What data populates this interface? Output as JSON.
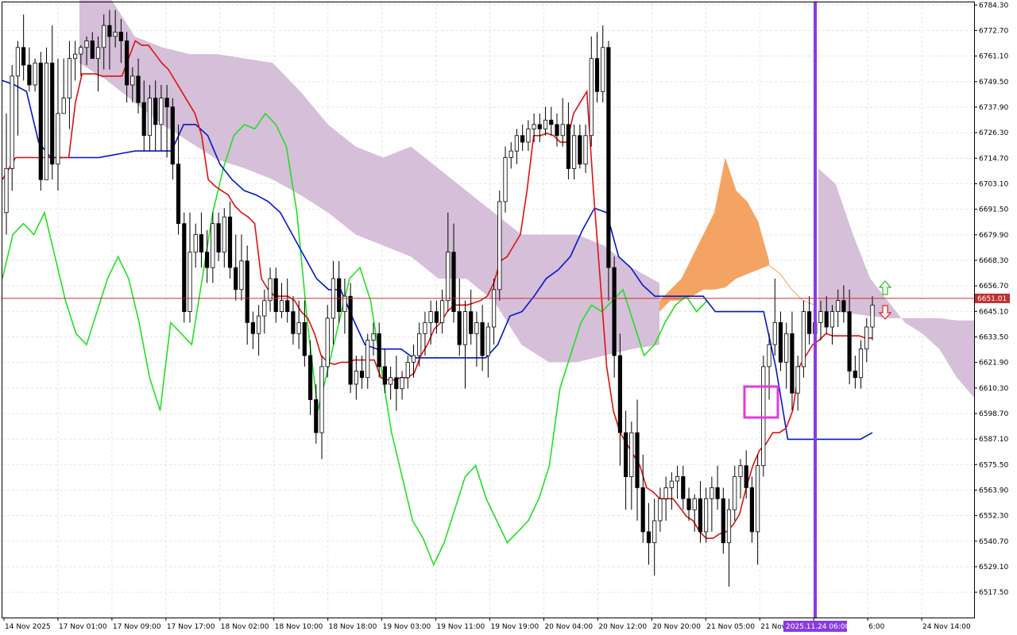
{
  "chart_data": {
    "type": "candlestick",
    "title": "",
    "y_ticks": [
      "6784.30",
      "6772.70",
      "6761.10",
      "6749.50",
      "6737.90",
      "6726.30",
      "6714.70",
      "6703.10",
      "6691.50",
      "6679.90",
      "6668.30",
      "6656.70",
      "6645.10",
      "6633.50",
      "6621.90",
      "6610.30",
      "6598.70",
      "6587.10",
      "6575.50",
      "6563.90",
      "6552.30",
      "6540.70",
      "6529.10",
      "6517.50"
    ],
    "ylim": [
      6506.0,
      6785.5
    ],
    "x_labels": [
      "14 Nov 2025",
      "17 Nov 01:00",
      "17 Nov 09:00",
      "17 Nov 17:00",
      "18 Nov 02:00",
      "18 Nov 10:00",
      "18 Nov 18:00",
      "19 Nov 03:00",
      "19 Nov 11:00",
      "19 Nov 19:00",
      "20 Nov 04:00",
      "20 Nov 12:00",
      "20 Nov 20:00",
      "21 Nov 05:00",
      "21 Nov 13:00",
      "21 No",
      "6:00",
      "24 Nov 14:00"
    ],
    "current_price": "6651.01",
    "vline_label": "2025.11.24 06:00",
    "candles": [
      [
        6690,
        6735,
        6680,
        6710
      ],
      [
        6710,
        6757,
        6700,
        6752
      ],
      [
        6752,
        6768,
        6725,
        6765
      ],
      [
        6765,
        6780,
        6750,
        6757
      ],
      [
        6757,
        6765,
        6745,
        6748
      ],
      [
        6748,
        6760,
        6745,
        6758
      ],
      [
        6758,
        6763,
        6700,
        6705
      ],
      [
        6705,
        6765,
        6705,
        6758
      ],
      [
        6758,
        6775,
        6705,
        6712
      ],
      [
        6712,
        6760,
        6700,
        6735
      ],
      [
        6735,
        6760,
        6735,
        6742
      ],
      [
        6742,
        6768,
        6728,
        6760
      ],
      [
        6760,
        6768,
        6750,
        6762
      ],
      [
        6762,
        6766,
        6752,
        6765
      ],
      [
        6765,
        6770,
        6757,
        6768
      ],
      [
        6768,
        6772,
        6760,
        6760
      ],
      [
        6760,
        6770,
        6745,
        6765
      ],
      [
        6765,
        6780,
        6755,
        6775
      ],
      [
        6775,
        6782,
        6755,
        6770
      ],
      [
        6770,
        6782,
        6765,
        6772
      ],
      [
        6772,
        6778,
        6758,
        6768
      ],
      [
        6768,
        6772,
        6740,
        6748
      ],
      [
        6748,
        6756,
        6740,
        6752
      ],
      [
        6752,
        6760,
        6735,
        6740
      ],
      [
        6740,
        6750,
        6718,
        6725
      ],
      [
        6725,
        6748,
        6718,
        6742
      ],
      [
        6742,
        6750,
        6718,
        6730
      ],
      [
        6730,
        6748,
        6718,
        6742
      ],
      [
        6742,
        6748,
        6715,
        6738
      ],
      [
        6738,
        6742,
        6705,
        6712
      ],
      [
        6712,
        6730,
        6680,
        6685
      ],
      [
        6685,
        6690,
        6640,
        6645
      ],
      [
        6645,
        6690,
        6640,
        6672
      ],
      [
        6672,
        6685,
        6665,
        6680
      ],
      [
        6680,
        6690,
        6665,
        6672
      ],
      [
        6672,
        6682,
        6658,
        6665
      ],
      [
        6665,
        6690,
        6658,
        6685
      ],
      [
        6685,
        6690,
        6668,
        6672
      ],
      [
        6672,
        6692,
        6665,
        6688
      ],
      [
        6688,
        6695,
        6660,
        6665
      ],
      [
        6665,
        6680,
        6650,
        6655
      ],
      [
        6655,
        6680,
        6650,
        6668
      ],
      [
        6668,
        6675,
        6630,
        6640
      ],
      [
        6640,
        6645,
        6628,
        6635
      ],
      [
        6635,
        6648,
        6625,
        6643
      ],
      [
        6643,
        6655,
        6635,
        6650
      ],
      [
        6650,
        6665,
        6645,
        6660
      ],
      [
        6660,
        6665,
        6640,
        6645
      ],
      [
        6645,
        6658,
        6642,
        6650
      ],
      [
        6650,
        6660,
        6640,
        6645
      ],
      [
        6645,
        6652,
        6630,
        6635
      ],
      [
        6635,
        6650,
        6628,
        6640
      ],
      [
        6640,
        6650,
        6620,
        6625
      ],
      [
        6625,
        6632,
        6598,
        6605
      ],
      [
        6605,
        6612,
        6585,
        6590
      ],
      [
        6590,
        6625,
        6578,
        6620
      ],
      [
        6620,
        6648,
        6615,
        6642
      ],
      [
        6642,
        6668,
        6630,
        6660
      ],
      [
        6660,
        6668,
        6640,
        6645
      ],
      [
        6645,
        6660,
        6635,
        6652
      ],
      [
        6652,
        6658,
        6608,
        6612
      ],
      [
        6612,
        6625,
        6605,
        6618
      ],
      [
        6618,
        6625,
        6610,
        6615
      ],
      [
        6615,
        6635,
        6610,
        6632
      ],
      [
        6632,
        6640,
        6625,
        6635
      ],
      [
        6635,
        6640,
        6615,
        6620
      ],
      [
        6620,
        6628,
        6608,
        6612
      ],
      [
        6612,
        6620,
        6605,
        6615
      ],
      [
        6615,
        6625,
        6600,
        6610
      ],
      [
        6610,
        6618,
        6605,
        6615
      ],
      [
        6615,
        6625,
        6610,
        6622
      ],
      [
        6622,
        6630,
        6615,
        6625
      ],
      [
        6625,
        6640,
        6620,
        6635
      ],
      [
        6635,
        6645,
        6625,
        6640
      ],
      [
        6640,
        6650,
        6630,
        6645
      ],
      [
        6645,
        6650,
        6635,
        6640
      ],
      [
        6640,
        6655,
        6635,
        6650
      ],
      [
        6650,
        6690,
        6645,
        6672
      ],
      [
        6672,
        6685,
        6640,
        6645
      ],
      [
        6645,
        6660,
        6625,
        6630
      ],
      [
        6630,
        6650,
        6610,
        6645
      ],
      [
        6645,
        6655,
        6630,
        6635
      ],
      [
        6635,
        6645,
        6620,
        6640
      ],
      [
        6640,
        6648,
        6618,
        6625
      ],
      [
        6625,
        6640,
        6615,
        6638
      ],
      [
        6638,
        6660,
        6630,
        6655
      ],
      [
        6655,
        6700,
        6650,
        6695
      ],
      [
        6695,
        6720,
        6690,
        6715
      ],
      [
        6715,
        6722,
        6710,
        6718
      ],
      [
        6718,
        6728,
        6712,
        6725
      ],
      [
        6725,
        6730,
        6718,
        6722
      ],
      [
        6722,
        6732,
        6718,
        6728
      ],
      [
        6728,
        6735,
        6722,
        6730
      ],
      [
        6730,
        6735,
        6722,
        6728
      ],
      [
        6728,
        6738,
        6725,
        6732
      ],
      [
        6732,
        6738,
        6725,
        6730
      ],
      [
        6730,
        6735,
        6720,
        6725
      ],
      [
        6725,
        6742,
        6720,
        6730
      ],
      [
        6730,
        6740,
        6705,
        6710
      ],
      [
        6710,
        6730,
        6705,
        6725
      ],
      [
        6725,
        6730,
        6710,
        6712
      ],
      [
        6712,
        6730,
        6708,
        6725
      ],
      [
        6725,
        6770,
        6720,
        6760
      ],
      [
        6760,
        6772,
        6740,
        6745
      ],
      [
        6745,
        6775,
        6740,
        6765
      ],
      [
        6765,
        6768,
        6650,
        6665
      ],
      [
        6665,
        6670,
        6615,
        6625
      ],
      [
        6625,
        6635,
        6575,
        6590
      ],
      [
        6590,
        6600,
        6555,
        6570
      ],
      [
        6570,
        6595,
        6555,
        6590
      ],
      [
        6590,
        6605,
        6550,
        6565
      ],
      [
        6565,
        6580,
        6540,
        6545
      ],
      [
        6545,
        6558,
        6530,
        6540
      ],
      [
        6540,
        6560,
        6525,
        6550
      ],
      [
        6550,
        6565,
        6545,
        6560
      ],
      [
        6560,
        6570,
        6550,
        6565
      ],
      [
        6565,
        6572,
        6555,
        6568
      ],
      [
        6568,
        6575,
        6560,
        6570
      ],
      [
        6570,
        6575,
        6555,
        6560
      ],
      [
        6560,
        6565,
        6550,
        6555
      ],
      [
        6555,
        6562,
        6545,
        6560
      ],
      [
        6560,
        6568,
        6540,
        6545
      ],
      [
        6545,
        6565,
        6540,
        6560
      ],
      [
        6560,
        6570,
        6545,
        6565
      ],
      [
        6565,
        6575,
        6555,
        6560
      ],
      [
        6560,
        6565,
        6535,
        6540
      ],
      [
        6540,
        6560,
        6520,
        6555
      ],
      [
        6555,
        6575,
        6550,
        6570
      ],
      [
        6570,
        6578,
        6560,
        6575
      ],
      [
        6575,
        6582,
        6560,
        6565
      ],
      [
        6565,
        6570,
        6540,
        6545
      ],
      [
        6545,
        6580,
        6530,
        6575
      ],
      [
        6575,
        6625,
        6570,
        6620
      ],
      [
        6620,
        6635,
        6605,
        6630
      ],
      [
        6630,
        6660,
        6625,
        6640
      ],
      [
        6640,
        6645,
        6618,
        6622
      ],
      [
        6622,
        6640,
        6610,
        6635
      ],
      [
        6635,
        6645,
        6600,
        6608
      ],
      [
        6608,
        6625,
        6600,
        6620
      ],
      [
        6620,
        6650,
        6615,
        6645
      ],
      [
        6645,
        6652,
        6630,
        6635
      ],
      [
        6635,
        6645,
        6625,
        6640
      ],
      [
        6640,
        6650,
        6632,
        6645
      ],
      [
        6645,
        6652,
        6635,
        6638
      ],
      [
        6638,
        6648,
        6630,
        6645
      ],
      [
        6645,
        6655,
        6638,
        6650
      ],
      [
        6650,
        6657,
        6640,
        6645
      ],
      [
        6645,
        6655,
        6612,
        6618
      ],
      [
        6618,
        6625,
        6610,
        6615
      ],
      [
        6615,
        6632,
        6610,
        6628
      ],
      [
        6628,
        6642,
        6622,
        6638
      ],
      [
        6638,
        6652,
        6632,
        6648
      ]
    ],
    "tenkan": [
      6705,
      6710,
      6715,
      6715,
      6715,
      6715,
      6715,
      6715,
      6715,
      6715,
      6715,
      6740,
      6753,
      6753,
      6753,
      6752,
      6752,
      6752,
      6752,
      6760,
      6768,
      6766,
      6766,
      6762,
      6758,
      6755,
      6750,
      6745,
      6740,
      6735,
      6725,
      6705,
      6702,
      6700,
      6698,
      6693,
      6690,
      6688,
      6685,
      6660,
      6655,
      6652,
      6652,
      6652,
      6650,
      6645,
      6642,
      6635,
      6625,
      6622,
      6621,
      6622,
      6622,
      6623,
      6623,
      6623,
      6623,
      6615,
      6614,
      6614,
      6615,
      6615,
      6617,
      6625,
      6630,
      6637,
      6640,
      6645,
      6648,
      6648,
      6648,
      6649,
      6650,
      6652,
      6658,
      6668,
      6670,
      6675,
      6680,
      6700,
      6725,
      6725,
      6726,
      6725,
      6722,
      6722,
      6735,
      6740,
      6745,
      6700,
      6660,
      6620,
      6600,
      6590,
      6585,
      6580,
      6575,
      6565,
      6563,
      6560,
      6560,
      6560,
      6556,
      6552,
      6550,
      6545,
      6542,
      6542,
      6544,
      6545,
      6548,
      6553,
      6565,
      6575,
      6582,
      6585,
      6590,
      6590,
      6592,
      6600,
      6620,
      6625,
      6630,
      6632,
      6635,
      6634,
      6634,
      6634,
      6634,
      6634,
      6633,
      6633
    ],
    "kijun": [
      6750,
      6748,
      6745,
      6722,
      6715,
      6715,
      6715,
      6715,
      6715,
      6716,
      6717,
      6718,
      6718,
      6718,
      6718,
      6730,
      6730,
      6725,
      6712,
      6705,
      6700,
      6698,
      6695,
      6690,
      6680,
      6670,
      6660,
      6655,
      6655,
      6642,
      6630,
      6628,
      6628,
      6628,
      6624,
      6624,
      6624,
      6624,
      6624,
      6624,
      6624,
      6630,
      6643,
      6645,
      6652,
      6660,
      6664,
      6670,
      6682,
      6692,
      6690,
      6670,
      6665,
      6657,
      6652,
      6652,
      6652,
      6652,
      6652,
      6645,
      6645,
      6645,
      6645,
      6645,
      6620,
      6587,
      6587,
      6587,
      6587,
      6587,
      6587,
      6587,
      6590
    ],
    "chikou": [
      6660,
      6680,
      6685,
      6680,
      6690,
      6670,
      6650,
      6635,
      6630,
      6645,
      6660,
      6670,
      6660,
      6640,
      6615,
      6600,
      6640,
      6635,
      6630,
      6660,
      6690,
      6710,
      6725,
      6730,
      6728,
      6735,
      6730,
      6720,
      6690,
      6640,
      6600,
      6620,
      6640,
      6660,
      6665,
      6650,
      6620,
      6590,
      6570,
      6550,
      6542,
      6530,
      6540,
      6555,
      6570,
      6575,
      6560,
      6550,
      6540,
      6545,
      6550,
      6560,
      6575,
      6610,
      6625,
      6640,
      6648,
      6645,
      6650,
      6655,
      6640,
      6625,
      6630,
      6640,
      6648,
      6652,
      6645,
      6650
    ],
    "kumo_upper": [
      6790,
      6790,
      6770,
      6765,
      6762,
      6762,
      6760,
      6758,
      6745,
      6730,
      6720,
      6715,
      6720,
      6710,
      6700,
      6690,
      6680,
      6680,
      6680,
      6675,
      6665,
      6658
    ],
    "kumo_lower": [
      6758,
      6750,
      6740,
      6730,
      6722,
      6714,
      6710,
      6705,
      6698,
      6690,
      6680,
      6675,
      6670,
      6660,
      6660,
      6650,
      6630,
      6622,
      6622,
      6625,
      6628,
      6630
    ],
    "future_cloud": [
      6710,
      6703,
      6680,
      6660,
      6650,
      6640,
      6635,
      6628,
      6615,
      6606,
      6598,
      6592,
      6585,
      6578,
      6572
    ]
  }
}
